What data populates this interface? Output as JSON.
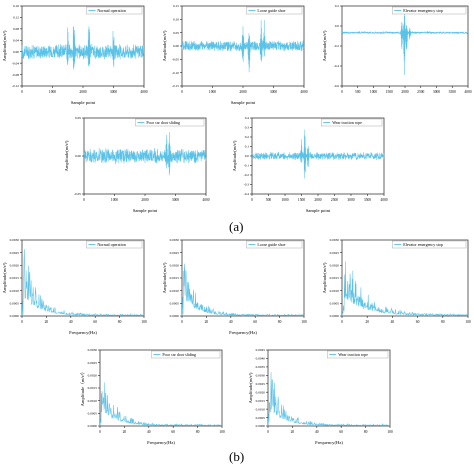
{
  "figure": {
    "label_a": "(a)",
    "label_b": "(b)"
  },
  "colors": {
    "signal": "#5bc2e7",
    "axis": "#222222"
  },
  "chart_data": [
    {
      "id": "a1",
      "type": "line",
      "legend": "Normal operation",
      "xlabel": "Sample point",
      "ylabel": "Amplitude(m/s²)",
      "xlim": [
        0,
        4000
      ],
      "ylim": [
        -0.12,
        0.16
      ],
      "xticks": [
        "0",
        "1000",
        "2000",
        "3000",
        "4000"
      ],
      "yticks": [
        "-0.12",
        "-0.08",
        "-0.04",
        "0.00",
        "0.04",
        "0.08",
        "0.12",
        "0.16"
      ],
      "noise": 0.016,
      "spikes": [
        [
          1500,
          0.1,
          -0.07
        ],
        [
          1700,
          0.15,
          -0.09
        ],
        [
          2200,
          0.12,
          -0.1
        ],
        [
          3000,
          0.08,
          -0.06
        ]
      ]
    },
    {
      "id": "a2",
      "type": "line",
      "legend": "Loose guide shoe",
      "xlabel": "Sample point",
      "ylabel": "Amplitude(m/s²)",
      "xlim": [
        0,
        4000
      ],
      "ylim": [
        -0.15,
        0.15
      ],
      "xticks": [
        "0",
        "1000",
        "2000",
        "3000",
        "4000"
      ],
      "yticks": [
        "-0.15",
        "-0.10",
        "-0.05",
        "0.00",
        "0.05",
        "0.10",
        "0.15"
      ],
      "noise": 0.012,
      "spikes": [
        [
          2000,
          0.07,
          -0.1
        ],
        [
          2200,
          0.06,
          -0.12
        ],
        [
          2600,
          0.13,
          -0.09
        ],
        [
          2700,
          0.09,
          -0.05
        ]
      ]
    },
    {
      "id": "a3",
      "type": "line",
      "legend": "Elevator emergency stop",
      "xlabel": "",
      "ylabel": "Amplitude(m/s²)",
      "xlim": [
        0,
        4000
      ],
      "ylim": [
        -0.6,
        0.3
      ],
      "xticks": [
        "0",
        "500",
        "1000",
        "1500",
        "2000",
        "2500",
        "3000",
        "3500",
        "4000"
      ],
      "yticks": [
        "-0.6",
        "-0.4",
        "-0.2",
        "0.0",
        "0.2"
      ],
      "noise": 0.006,
      "spikes": [
        [
          1900,
          0.15,
          -0.2
        ],
        [
          1980,
          0.25,
          -0.55
        ],
        [
          2050,
          0.12,
          -0.25
        ],
        [
          2150,
          0.06,
          -0.1
        ]
      ]
    },
    {
      "id": "a4",
      "type": "line",
      "legend": "Poor car door sliding",
      "xlabel": "Sample point",
      "ylabel": "Amplitude(m/s²)",
      "xlim": [
        0,
        4000
      ],
      "ylim": [
        -0.1,
        0.1
      ],
      "xticks": [
        "0",
        "1000",
        "2000",
        "3000",
        "4000"
      ],
      "yticks": [
        "-0.05",
        "0.00",
        "0.05"
      ],
      "noise": 0.012,
      "spikes": [
        [
          2700,
          0.06,
          -0.04
        ],
        [
          2800,
          0.08,
          -0.07
        ]
      ]
    },
    {
      "id": "a5",
      "type": "line",
      "legend": "Wear traction rope",
      "xlabel": "Sample point",
      "ylabel": "Amplitude(m/s²)",
      "xlim": [
        0,
        4000
      ],
      "ylim": [
        -0.4,
        0.4
      ],
      "xticks": [
        "0",
        "500",
        "1000",
        "1500",
        "2000",
        "2500",
        "3000",
        "3500",
        "4000"
      ],
      "yticks": [
        "-0.4",
        "-0.3",
        "-0.2",
        "-0.1",
        "0.0",
        "0.1",
        "0.2",
        "0.3",
        "0.4"
      ],
      "noise": 0.025,
      "spikes": [
        [
          1500,
          0.18,
          -0.1
        ],
        [
          1600,
          0.32,
          -0.28
        ],
        [
          1700,
          0.12,
          -0.12
        ]
      ]
    },
    {
      "id": "b1",
      "type": "line",
      "legend": "Normal operation",
      "xlabel": "Frequency(Hz)",
      "ylabel": "Amplitude(m/s²)",
      "xlim": [
        0,
        100
      ],
      "ylim": [
        0,
        0.003
      ],
      "xticks": [
        "0",
        "20",
        "40",
        "60",
        "80",
        "100"
      ],
      "yticks": [
        "0.0000",
        "0.0005",
        "0.0010",
        "0.0015",
        "0.0020",
        "0.0025",
        "0.0030"
      ],
      "peak": 0.0028,
      "decay": 12
    },
    {
      "id": "b2",
      "type": "line",
      "legend": "Loose guide shoe",
      "xlabel": "Frequency(Hz)",
      "ylabel": "Amplitude(m/s²)",
      "xlim": [
        0,
        100
      ],
      "ylim": [
        0,
        0.003
      ],
      "xticks": [
        "0",
        "20",
        "40",
        "60",
        "80",
        "100"
      ],
      "yticks": [
        "0.0000",
        "0.0005",
        "0.0010",
        "0.0015",
        "0.0020",
        "0.0025",
        "0.0030"
      ],
      "peak": 0.0027,
      "decay": 10
    },
    {
      "id": "b3",
      "type": "line",
      "legend": "Elevator emergency stop",
      "xlabel": "",
      "ylabel": "Amplitude(m/s²)",
      "xlim": [
        0,
        100
      ],
      "ylim": [
        0,
        0.003
      ],
      "xticks": [
        "0",
        "20",
        "40",
        "60",
        "80",
        "100"
      ],
      "yticks": [
        "0.0000",
        "0.0005",
        "0.0010",
        "0.0015",
        "0.0020",
        "0.0025",
        "0.0030"
      ],
      "peak": 0.0028,
      "decay": 16
    },
    {
      "id": "b4",
      "type": "line",
      "legend": "Poor car door sliding",
      "xlabel": "Frequency(Hz)",
      "ylabel": "Amplitude（m/s²）",
      "xlim": [
        0,
        100
      ],
      "ylim": [
        0,
        0.003
      ],
      "xticks": [
        "0",
        "20",
        "40",
        "60",
        "80",
        "100"
      ],
      "yticks": [
        "0.0000",
        "0.0005",
        "0.0010",
        "0.0015",
        "0.0020",
        "0.0025",
        "0.0030"
      ],
      "peak": 0.0024,
      "decay": 11
    },
    {
      "id": "b5",
      "type": "line",
      "legend": "Wear traction rope",
      "xlabel": "Frequency(Hz)",
      "ylabel": "Amplitude(m/s²)",
      "xlim": [
        0,
        100
      ],
      "ylim": [
        0,
        0.0045
      ],
      "xticks": [
        "0",
        "20",
        "40",
        "60",
        "80",
        "100"
      ],
      "yticks": [
        "0.0000",
        "0.0005",
        "0.0010",
        "0.0015",
        "0.0020",
        "0.0025",
        "0.0030",
        "0.0035",
        "0.0040",
        "0.0045"
      ],
      "peak": 0.0038,
      "decay": 11
    }
  ]
}
